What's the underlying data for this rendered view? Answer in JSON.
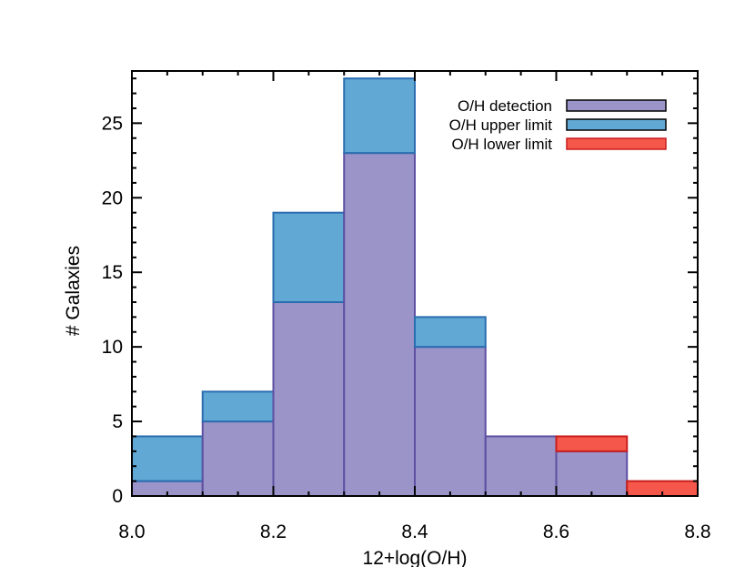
{
  "chart_data": {
    "type": "bar",
    "stacked": true,
    "xlabel": "12+log(O/H)",
    "ylabel": "# Galaxies",
    "xlim": [
      8.0,
      8.8
    ],
    "ylim": [
      0,
      28.5
    ],
    "bin_edges": [
      8.0,
      8.1,
      8.2,
      8.3,
      8.4,
      8.5,
      8.6,
      8.7,
      8.8
    ],
    "x_ticks": [
      8.0,
      8.2,
      8.4,
      8.6,
      8.8
    ],
    "x_tick_labels": [
      "8.0",
      "8.2",
      "8.4",
      "8.6",
      "8.8"
    ],
    "y_ticks": [
      0,
      5,
      10,
      15,
      20,
      25
    ],
    "y_tick_labels": [
      "0",
      "5",
      "10",
      "15",
      "20",
      "25"
    ],
    "grid": false,
    "legend_position": "top-right",
    "series": [
      {
        "name": "O/H detection",
        "values": [
          1,
          5,
          13,
          23,
          10,
          4,
          3,
          0
        ],
        "color": "#9a94c8",
        "edge": "#5e4fa2"
      },
      {
        "name": "O/H upper limit",
        "values": [
          3,
          2,
          6,
          5,
          2,
          0,
          0,
          0
        ],
        "color": "#62a8d4",
        "edge": "#2a6db0"
      },
      {
        "name": "O/H lower limit",
        "values": [
          0,
          0,
          0,
          0,
          0,
          0,
          1,
          1
        ],
        "color": "#f5584a",
        "edge": "#c81e1e"
      }
    ]
  }
}
